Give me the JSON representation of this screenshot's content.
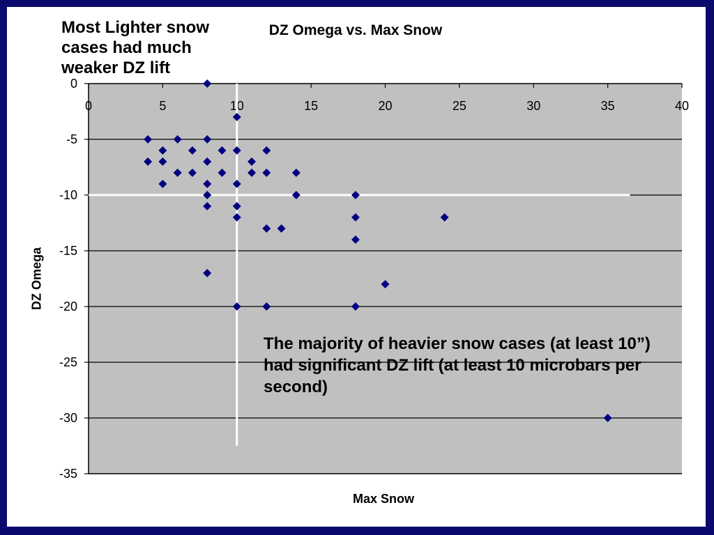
{
  "annotations": {
    "top_left": "Most Lighter snow cases had much weaker DZ lift",
    "middle": "The majority of heavier snow cases (at least 10”) had significant DZ lift (at least 10 microbars per second)"
  },
  "colors": {
    "background_frame": "#0a0a6e",
    "plot_area": "#c0c0c0",
    "marker": "#000080",
    "reference_lines": "#ffffff"
  },
  "chart_data": {
    "type": "scatter",
    "title": "DZ Omega vs. Max Snow",
    "xlabel": "Max Snow",
    "ylabel": "DZ Omega",
    "xlim": [
      0,
      40
    ],
    "ylim": [
      -35,
      0
    ],
    "xticks": [
      "0",
      "5",
      "10",
      "15",
      "20",
      "25",
      "30",
      "35",
      "40"
    ],
    "yticks": [
      "0",
      "-5",
      "-10",
      "-15",
      "-20",
      "-25",
      "-30",
      "-35"
    ],
    "grid": "horizontal",
    "marker": "diamond",
    "reference_lines": {
      "x": 10,
      "y": -10
    },
    "points": [
      {
        "x": 8,
        "y": 0
      },
      {
        "x": 10,
        "y": -3
      },
      {
        "x": 4,
        "y": -5
      },
      {
        "x": 6,
        "y": -5
      },
      {
        "x": 8,
        "y": -5
      },
      {
        "x": 5,
        "y": -6
      },
      {
        "x": 7,
        "y": -6
      },
      {
        "x": 9,
        "y": -6
      },
      {
        "x": 10,
        "y": -6
      },
      {
        "x": 12,
        "y": -6
      },
      {
        "x": 4,
        "y": -7
      },
      {
        "x": 5,
        "y": -7
      },
      {
        "x": 8,
        "y": -7
      },
      {
        "x": 11,
        "y": -7
      },
      {
        "x": 6,
        "y": -8
      },
      {
        "x": 7,
        "y": -8
      },
      {
        "x": 9,
        "y": -8
      },
      {
        "x": 11,
        "y": -8
      },
      {
        "x": 12,
        "y": -8
      },
      {
        "x": 14,
        "y": -8
      },
      {
        "x": 5,
        "y": -9
      },
      {
        "x": 8,
        "y": -9
      },
      {
        "x": 10,
        "y": -9
      },
      {
        "x": 8,
        "y": -10
      },
      {
        "x": 14,
        "y": -10
      },
      {
        "x": 18,
        "y": -10
      },
      {
        "x": 8,
        "y": -11
      },
      {
        "x": 10,
        "y": -11
      },
      {
        "x": 10,
        "y": -12
      },
      {
        "x": 18,
        "y": -12
      },
      {
        "x": 24,
        "y": -12
      },
      {
        "x": 12,
        "y": -13
      },
      {
        "x": 13,
        "y": -13
      },
      {
        "x": 18,
        "y": -14
      },
      {
        "x": 8,
        "y": -17
      },
      {
        "x": 20,
        "y": -18
      },
      {
        "x": 10,
        "y": -20
      },
      {
        "x": 12,
        "y": -20
      },
      {
        "x": 18,
        "y": -20
      },
      {
        "x": 35,
        "y": -30
      }
    ]
  }
}
